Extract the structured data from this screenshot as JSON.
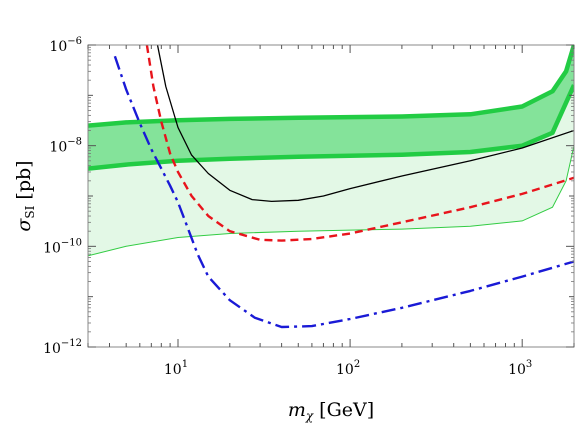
{
  "chart_data": {
    "type": "line",
    "title": "",
    "xlabel": "m_χ [GeV]",
    "ylabel": "σ_SI [pb]",
    "x_scale": "log",
    "y_scale": "log",
    "xlim": [
      3,
      2000
    ],
    "ylim": [
      1e-12,
      1e-06
    ],
    "grid": false,
    "legend": "none",
    "x_ticks": [
      {
        "value": 10,
        "label": "10",
        "exp": "1"
      },
      {
        "value": 100,
        "label": "10",
        "exp": "2"
      },
      {
        "value": 1000,
        "label": "10",
        "exp": "3"
      }
    ],
    "y_ticks": [
      {
        "value": 1e-12,
        "label": "10",
        "exp": "−12"
      },
      {
        "value": 1e-10,
        "label": "10",
        "exp": "−10"
      },
      {
        "value": 1e-08,
        "label": "10",
        "exp": "−8"
      },
      {
        "value": 1e-06,
        "label": "10",
        "exp": "−6"
      }
    ],
    "bands": [
      {
        "id": "dark-green-band",
        "color": "#22cc44",
        "fill": "#84e39a",
        "lower": {
          "x": [
            3,
            5,
            10,
            20,
            50,
            100,
            200,
            500,
            1000,
            1500,
            2000
          ],
          "y": [
            3.5e-09,
            4.2e-09,
            5e-09,
            5.5e-09,
            6e-09,
            6.3e-09,
            6.6e-09,
            7.5e-09,
            1e-08,
            1.8e-08,
            1.6e-07
          ]
        },
        "upper": {
          "x": [
            3,
            5,
            10,
            20,
            50,
            100,
            200,
            500,
            1000,
            1500,
            1800,
            2000
          ],
          "y": [
            2.5e-08,
            2.9e-08,
            3.2e-08,
            3.4e-08,
            3.6e-08,
            3.7e-08,
            3.8e-08,
            4.2e-08,
            6e-08,
            1.2e-07,
            3e-07,
            1e-06
          ]
        }
      },
      {
        "id": "light-green-band",
        "color": "#33cc44",
        "fill": "#e3f8e6",
        "lower": {
          "x": [
            3,
            5,
            10,
            20,
            50,
            100,
            200,
            500,
            1000,
            1500,
            1800,
            2000
          ],
          "y": [
            6.5e-11,
            1e-10,
            1.5e-10,
            1.8e-10,
            2e-10,
            2.1e-10,
            2.2e-10,
            2.5e-10,
            3.2e-10,
            6e-10,
            2e-09,
            1e-08
          ]
        }
      }
    ],
    "series": [
      {
        "id": "solid-black",
        "color": "#000000",
        "dash": "solid",
        "width": 1.3,
        "x": [
          7.6,
          8.5,
          10,
          12,
          15,
          20,
          27,
          35,
          50,
          70,
          100,
          200,
          500,
          1000,
          2000
        ],
        "y": [
          1e-06,
          1.5e-07,
          2.3e-08,
          6.5e-09,
          2.8e-09,
          1.3e-09,
          8.5e-10,
          7.8e-10,
          8.2e-10,
          1e-09,
          1.4e-09,
          2.5e-09,
          5e-09,
          9e-09,
          2e-08
        ]
      },
      {
        "id": "red-dashed",
        "color": "#e8141c",
        "dash": "8,5",
        "width": 2.4,
        "x": [
          6.6,
          7.2,
          8,
          9,
          10,
          12,
          15,
          20,
          30,
          40,
          60,
          100,
          200,
          500,
          1000,
          2000
        ],
        "y": [
          1e-06,
          1.5e-07,
          3e-08,
          7e-09,
          3e-09,
          1e-09,
          4e-10,
          2e-10,
          1.35e-10,
          1.3e-10,
          1.4e-10,
          1.8e-10,
          3e-10,
          6e-10,
          1.1e-09,
          2.3e-09
        ]
      },
      {
        "id": "blue-dashdot",
        "color": "#1a1ad6",
        "dash": "14,5,3,5",
        "width": 2.4,
        "x": [
          4.3,
          5,
          6,
          7,
          8,
          9,
          10,
          11,
          13,
          15,
          20,
          28,
          40,
          60,
          100,
          200,
          500,
          1000,
          2000
        ],
        "y": [
          6e-07,
          1.3e-07,
          2.8e-08,
          8.5e-09,
          3.5e-09,
          1.6e-09,
          7.5e-10,
          3.2e-10,
          7e-11,
          2.5e-11,
          8.5e-12,
          3.8e-12,
          2.5e-12,
          2.6e-12,
          3.6e-12,
          6e-12,
          1.3e-11,
          2.5e-11,
          5e-11
        ]
      }
    ]
  }
}
